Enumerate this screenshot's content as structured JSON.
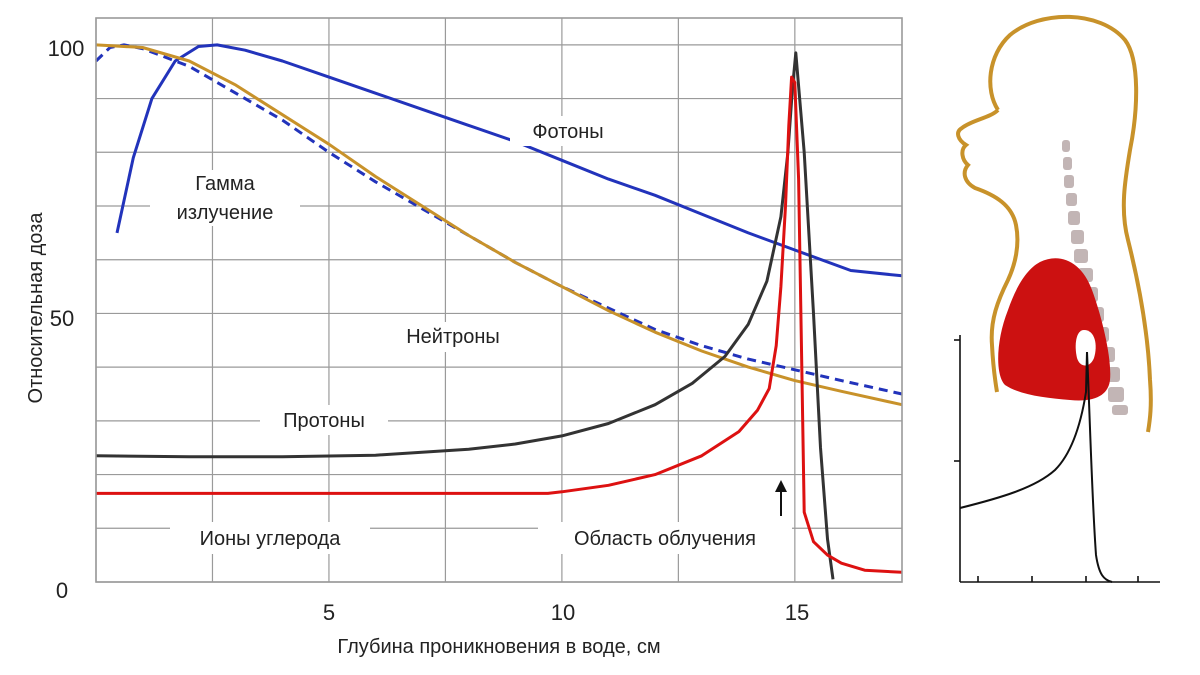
{
  "chart_data": {
    "type": "line",
    "title": "",
    "xlabel": "Глубина проникновения в воде, см",
    "ylabel": "Относительная доза",
    "xlim": [
      0,
      17.3
    ],
    "ylim": [
      0,
      105
    ],
    "x_ticks": [
      5,
      10,
      15
    ],
    "x_tick_labels": [
      "5",
      "10",
      "15"
    ],
    "y_ticks": [
      0,
      50,
      100
    ],
    "y_tick_labels": [
      "0",
      "50",
      "100"
    ],
    "grid": true,
    "legend": "none",
    "series": [
      {
        "name": "Фотоны",
        "color": "#2233bb",
        "style": "solid",
        "points": [
          [
            0.45,
            65
          ],
          [
            0.8,
            79
          ],
          [
            1.2,
            90
          ],
          [
            1.7,
            97
          ],
          [
            2.2,
            99.7
          ],
          [
            2.6,
            100
          ],
          [
            3.2,
            99
          ],
          [
            4,
            97
          ],
          [
            5,
            94
          ],
          [
            6,
            91
          ],
          [
            7,
            88
          ],
          [
            8,
            85
          ],
          [
            9,
            82
          ],
          [
            10,
            78.5
          ],
          [
            11,
            75
          ],
          [
            12,
            72
          ],
          [
            13,
            68.5
          ],
          [
            14,
            65
          ],
          [
            15,
            61.8
          ],
          [
            16.2,
            58
          ],
          [
            17.3,
            57
          ]
        ]
      },
      {
        "name": "Гамма излучение",
        "color": "#2233bb",
        "style": "dashed",
        "points": [
          [
            0,
            97
          ],
          [
            0.3,
            99.5
          ],
          [
            0.6,
            100
          ],
          [
            1,
            99.3
          ],
          [
            2,
            96
          ],
          [
            3,
            91
          ],
          [
            4,
            86
          ],
          [
            5,
            80
          ],
          [
            6,
            74.5
          ],
          [
            7,
            69.5
          ],
          [
            8,
            64.5
          ],
          [
            9,
            59.5
          ],
          [
            10,
            55
          ],
          [
            11,
            51
          ],
          [
            12,
            47
          ],
          [
            13,
            44
          ],
          [
            14,
            41.5
          ],
          [
            15,
            39.5
          ],
          [
            16,
            37.5
          ],
          [
            17.3,
            35
          ]
        ]
      },
      {
        "name": "Нейтроны",
        "color": "#c8922a",
        "style": "solid",
        "points": [
          [
            0,
            100
          ],
          [
            1,
            99.5
          ],
          [
            2,
            97
          ],
          [
            3,
            92.5
          ],
          [
            4,
            87
          ],
          [
            5,
            81.5
          ],
          [
            6,
            75.5
          ],
          [
            7,
            70
          ],
          [
            8,
            64.5
          ],
          [
            9,
            59.5
          ],
          [
            10,
            55
          ],
          [
            11,
            50.5
          ],
          [
            12,
            46.5
          ],
          [
            13,
            43
          ],
          [
            14,
            40
          ],
          [
            15,
            37.5
          ],
          [
            16,
            35.5
          ],
          [
            17.3,
            33
          ]
        ]
      },
      {
        "name": "Протоны",
        "color": "#333333",
        "style": "solid",
        "points": [
          [
            0,
            23.5
          ],
          [
            2,
            23.3
          ],
          [
            4,
            23.3
          ],
          [
            6,
            23.6
          ],
          [
            8,
            24.7
          ],
          [
            9,
            25.7
          ],
          [
            10,
            27.2
          ],
          [
            11,
            29.5
          ],
          [
            12,
            33
          ],
          [
            12.8,
            37
          ],
          [
            13.5,
            42
          ],
          [
            14,
            48
          ],
          [
            14.4,
            56
          ],
          [
            14.7,
            68
          ],
          [
            14.85,
            80
          ],
          [
            14.95,
            92
          ],
          [
            15.02,
            98.5
          ],
          [
            15.2,
            80
          ],
          [
            15.4,
            50
          ],
          [
            15.55,
            25
          ],
          [
            15.7,
            8
          ],
          [
            15.82,
            0.5
          ]
        ]
      },
      {
        "name": "Ионы углерода",
        "color": "#dd1111",
        "style": "solid",
        "points": [
          [
            0,
            16.5
          ],
          [
            4,
            16.5
          ],
          [
            8,
            16.5
          ],
          [
            9.7,
            16.5
          ],
          [
            10,
            16.8
          ],
          [
            11,
            18
          ],
          [
            12,
            20
          ],
          [
            13,
            23.5
          ],
          [
            13.8,
            28
          ],
          [
            14.2,
            32
          ],
          [
            14.45,
            36
          ],
          [
            14.6,
            44
          ],
          [
            14.7,
            55
          ],
          [
            14.8,
            70
          ],
          [
            14.87,
            85
          ],
          [
            14.93,
            94
          ],
          [
            15.0,
            93
          ],
          [
            15.08,
            75
          ],
          [
            15.15,
            40
          ],
          [
            15.2,
            13
          ],
          [
            15.4,
            7.5
          ],
          [
            15.7,
            5
          ],
          [
            16,
            3.5
          ],
          [
            16.5,
            2.2
          ],
          [
            17.3,
            1.8
          ]
        ]
      }
    ],
    "annotations": [
      {
        "text": "Фотоны"
      },
      {
        "text": "Гамма"
      },
      {
        "text": "излучение"
      },
      {
        "text": "Нейтроны"
      },
      {
        "text": "Протоны"
      },
      {
        "text": "Ионы углерода"
      },
      {
        "text": "Область облучения"
      }
    ]
  },
  "illustration": {
    "subject": "head-neck-side-profile-with-tumor",
    "outline_color": "#c8922a",
    "tumor_color": "#cc1111",
    "spine_color": "#c2b5b5",
    "dose_curve_color": "#111111"
  }
}
